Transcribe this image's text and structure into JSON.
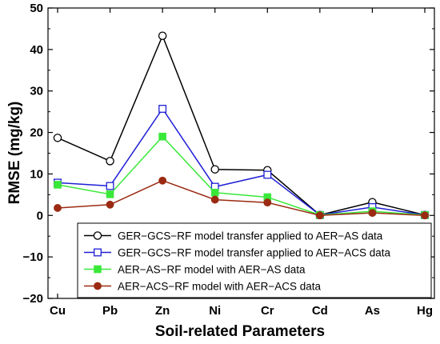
{
  "chart_data": {
    "type": "line",
    "xlabel": "Soil-related Parameters",
    "ylabel": "RMSE (mg/kg)",
    "categories": [
      "Cu",
      "Pb",
      "Zn",
      "Ni",
      "Cr",
      "Cd",
      "As",
      "Hg"
    ],
    "ylim": [
      -20,
      50
    ],
    "yticks": [
      -20,
      -10,
      0,
      10,
      20,
      30,
      40,
      50
    ],
    "grid": false,
    "legend_position": "bottom-right",
    "series": [
      {
        "name": "GER−GCS−RF model transfer applied to AER−AS data",
        "values": [
          18.7,
          13.1,
          43.3,
          11.1,
          10.9,
          0.1,
          3.2,
          0.1
        ],
        "color": "#000000",
        "marker": "circle-open"
      },
      {
        "name": "GER−GCS−RF model transfer applied to AER−ACS data",
        "values": [
          7.9,
          7.1,
          25.7,
          6.9,
          9.8,
          0.1,
          2.0,
          0.1
        ],
        "color": "#1f1fd6",
        "marker": "square-open"
      },
      {
        "name": "AER−AS−RF model with AER−AS data",
        "values": [
          7.4,
          5.1,
          19.0,
          5.5,
          4.4,
          0.1,
          1.0,
          0.1
        ],
        "color": "#3ae83a",
        "marker": "square-filled"
      },
      {
        "name": "AER−ACS−RF model with AER−ACS data",
        "values": [
          1.8,
          2.6,
          8.4,
          3.8,
          3.1,
          0.0,
          0.6,
          0.0
        ],
        "color": "#9b2a12",
        "marker": "circle-filled"
      }
    ]
  }
}
